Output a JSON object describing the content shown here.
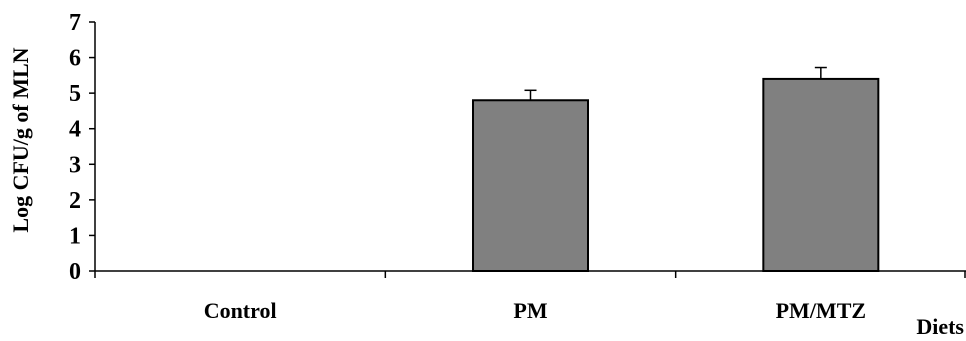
{
  "chart_data": {
    "type": "bar",
    "categories": [
      "Control",
      "PM",
      "PM/MTZ"
    ],
    "values": [
      0,
      4.8,
      5.4
    ],
    "errors": [
      0,
      0.28,
      0.32
    ],
    "ylabel": "Log CFU/g of MLN",
    "xlabel": "Diets",
    "ylim": [
      0,
      7
    ],
    "yticks": [
      "0",
      "1",
      "2",
      "3",
      "4",
      "5",
      "6",
      "7"
    ],
    "grid": false,
    "legend": "none",
    "colors": {
      "bar_fill": "#808080",
      "bar_stroke": "#000000",
      "axis": "#000000"
    }
  }
}
